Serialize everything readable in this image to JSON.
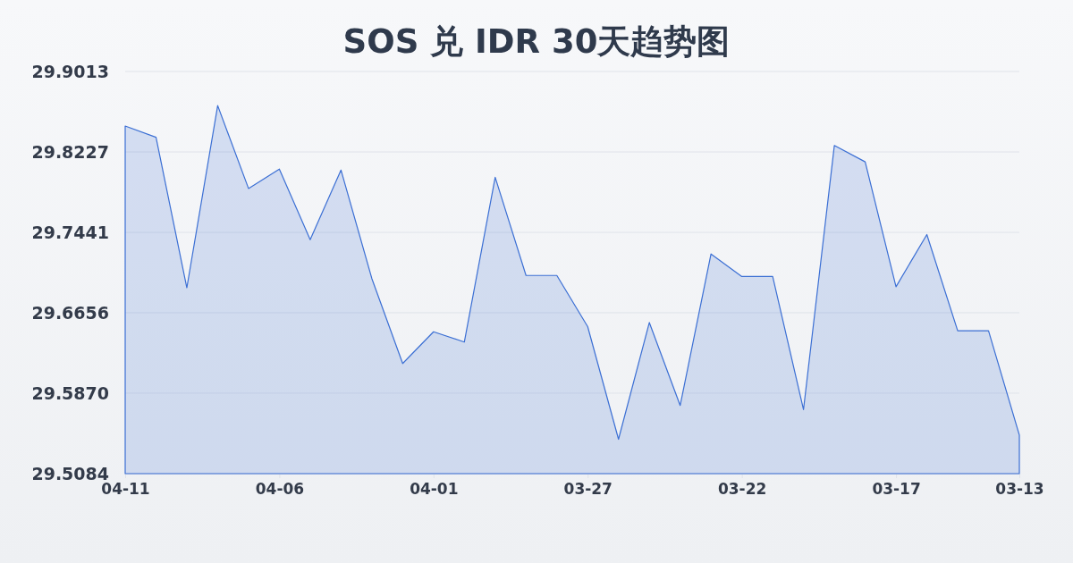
{
  "chart_data": {
    "type": "area",
    "title": "SOS 兑 IDR 30天趋势图",
    "categories": [
      "04-11",
      null,
      null,
      null,
      null,
      "04-06",
      null,
      null,
      null,
      null,
      "04-01",
      null,
      null,
      null,
      null,
      "03-27",
      null,
      null,
      null,
      null,
      "03-22",
      null,
      null,
      null,
      null,
      "03-17",
      null,
      null,
      null,
      "03-13"
    ],
    "values": [
      29.848,
      29.837,
      29.69,
      29.868,
      29.787,
      29.806,
      29.737,
      29.805,
      29.699,
      29.616,
      29.647,
      29.637,
      29.798,
      29.702,
      29.702,
      29.652,
      29.542,
      29.656,
      29.575,
      29.723,
      29.701,
      29.701,
      29.571,
      29.829,
      29.813,
      29.691,
      29.742,
      29.648,
      29.648,
      29.546
    ],
    "color": "#3b6fd4",
    "ylim": [
      29.5084,
      29.9013
    ],
    "yticks": [
      29.5084,
      {
        "value": 29.587,
        "label": "29.5870"
      },
      29.6656,
      29.7441,
      29.8227,
      29.9013
    ],
    "grid": "y"
  }
}
